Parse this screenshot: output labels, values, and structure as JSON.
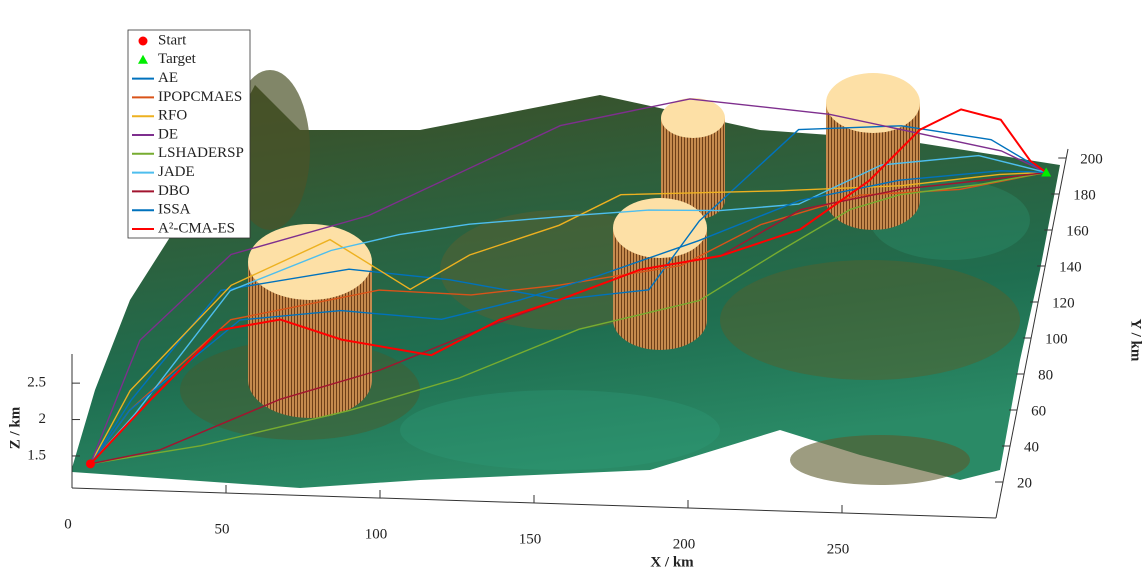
{
  "chart_data": {
    "type": "line3d",
    "xlabel": "X / km",
    "ylabel": "Y / km",
    "zlabel": "Z / km",
    "xlim": [
      0,
      300
    ],
    "ylim": [
      0,
      205
    ],
    "zlim": [
      1.06,
      2.9
    ],
    "xticks": [
      0,
      50,
      100,
      150,
      200,
      250
    ],
    "yticks": [
      20,
      40,
      60,
      80,
      100,
      120,
      140,
      160,
      180,
      200
    ],
    "zticks": [
      1.5,
      2,
      2.5
    ],
    "grid": false,
    "start": {
      "name": "Start",
      "color": "#ff0000",
      "x": 6,
      "y": 0,
      "z": 1.4
    },
    "target": {
      "name": "Target",
      "color": "#00ee00",
      "x": 296,
      "y": 178,
      "z": 1.4
    },
    "series": [
      {
        "name": "AE",
        "color": "#0072bd",
        "x": [
          6,
          17,
          39,
          79,
          112,
          149,
          177,
          189,
          218,
          250,
          278,
          296
        ],
        "y": [
          0,
          20,
          82,
          96,
          92,
          83,
          90,
          129,
          157,
          169,
          179,
          178
        ],
        "z": [
          1.4,
          1.8,
          1.8,
          1.8,
          1.8,
          1.8,
          1.8,
          1.8,
          2.4,
          2.2,
          1.8,
          1.4
        ]
      },
      {
        "name": "IPOPCMAES",
        "color": "#d95319",
        "x": [
          6,
          17,
          44,
          90,
          120,
          148,
          186,
          209,
          239,
          271,
          296
        ],
        "y": [
          0,
          14,
          66,
          85,
          84,
          91,
          104,
          128,
          146,
          151,
          178
        ],
        "z": [
          1.4,
          1.8,
          1.8,
          1.8,
          1.8,
          1.8,
          1.8,
          1.8,
          1.8,
          1.8,
          1.4
        ]
      },
      {
        "name": "RFO",
        "color": "#edb120",
        "x": [
          6,
          16,
          42,
          71,
          100,
          117,
          144,
          162,
          213,
          252,
          283,
          296
        ],
        "y": [
          0,
          25,
          85,
          112,
          86,
          106,
          124,
          142,
          147,
          152,
          160,
          178
        ],
        "z": [
          1.4,
          1.8,
          1.8,
          1.8,
          1.8,
          1.8,
          1.8,
          1.8,
          1.8,
          1.8,
          1.8,
          1.4
        ]
      },
      {
        "name": "DE",
        "color": "#7e2f8e",
        "x": [
          6,
          16,
          40,
          82,
          140,
          181,
          227,
          282,
          296
        ],
        "y": [
          0,
          53,
          102,
          126,
          163,
          172,
          166,
          173,
          178
        ],
        "z": [
          1.4,
          1.8,
          1.8,
          1.8,
          2.2,
          2.4,
          2.4,
          1.8,
          1.4
        ]
      },
      {
        "name": "LSHADERSP",
        "color": "#77ac30",
        "x": [
          6,
          41,
          87,
          121,
          157,
          194,
          217,
          237,
          252,
          277,
          296
        ],
        "y": [
          0,
          8,
          26,
          42,
          67,
          85,
          114,
          138,
          147,
          154,
          178
        ],
        "z": [
          1.4,
          1.5,
          1.6,
          1.7,
          1.8,
          1.8,
          1.8,
          1.8,
          1.8,
          1.8,
          1.4
        ]
      },
      {
        "name": "JADE",
        "color": "#4dbeee",
        "x": [
          6,
          19,
          42,
          72,
          93,
          115,
          150,
          172,
          195,
          220,
          246,
          275,
          296
        ],
        "y": [
          0,
          12,
          82,
          106,
          116,
          123,
          130,
          134,
          135,
          140,
          147,
          170,
          178
        ],
        "z": [
          1.4,
          1.8,
          1.8,
          1.8,
          1.8,
          1.8,
          1.8,
          1.8,
          1.8,
          1.8,
          2.2,
          1.8,
          1.4
        ]
      },
      {
        "name": "DBO",
        "color": "#a2142f",
        "x": [
          6,
          28,
          64,
          95,
          125,
          149,
          173,
          198,
          221,
          252,
          280,
          296
        ],
        "y": [
          0,
          5,
          31,
          45,
          65,
          83,
          101,
          110,
          137,
          150,
          157,
          178
        ],
        "z": [
          1.4,
          1.5,
          1.6,
          1.7,
          1.8,
          1.8,
          1.8,
          1.8,
          1.8,
          1.8,
          1.8,
          1.4
        ]
      },
      {
        "name": "ISSA",
        "color": "#0072bd",
        "x": [
          6,
          17,
          47,
          79,
          112,
          136,
          160,
          190,
          220,
          251,
          283,
          296
        ],
        "y": [
          0,
          14,
          66,
          73,
          70,
          82,
          97,
          118,
          142,
          155,
          162,
          178
        ],
        "z": [
          1.4,
          1.8,
          1.8,
          1.8,
          1.8,
          1.8,
          1.8,
          1.8,
          1.8,
          1.8,
          1.8,
          1.4
        ]
      },
      {
        "name": "A²-CMA-ES",
        "color": "#ff0000",
        "x": [
          6,
          23,
          41,
          60,
          81,
          111,
          131,
          149,
          173,
          198,
          222,
          243,
          258,
          271,
          284,
          292,
          296
        ],
        "y": [
          0,
          20,
          60,
          67,
          57,
          50,
          71,
          83,
          101,
          110,
          126,
          138,
          151,
          155,
          154,
          168,
          178
        ],
        "z": [
          1.4,
          1.8,
          1.8,
          1.8,
          1.8,
          1.8,
          1.8,
          1.8,
          1.8,
          1.8,
          1.8,
          2.2,
          2.6,
          2.8,
          2.7,
          1.8,
          1.4
        ]
      }
    ]
  }
}
